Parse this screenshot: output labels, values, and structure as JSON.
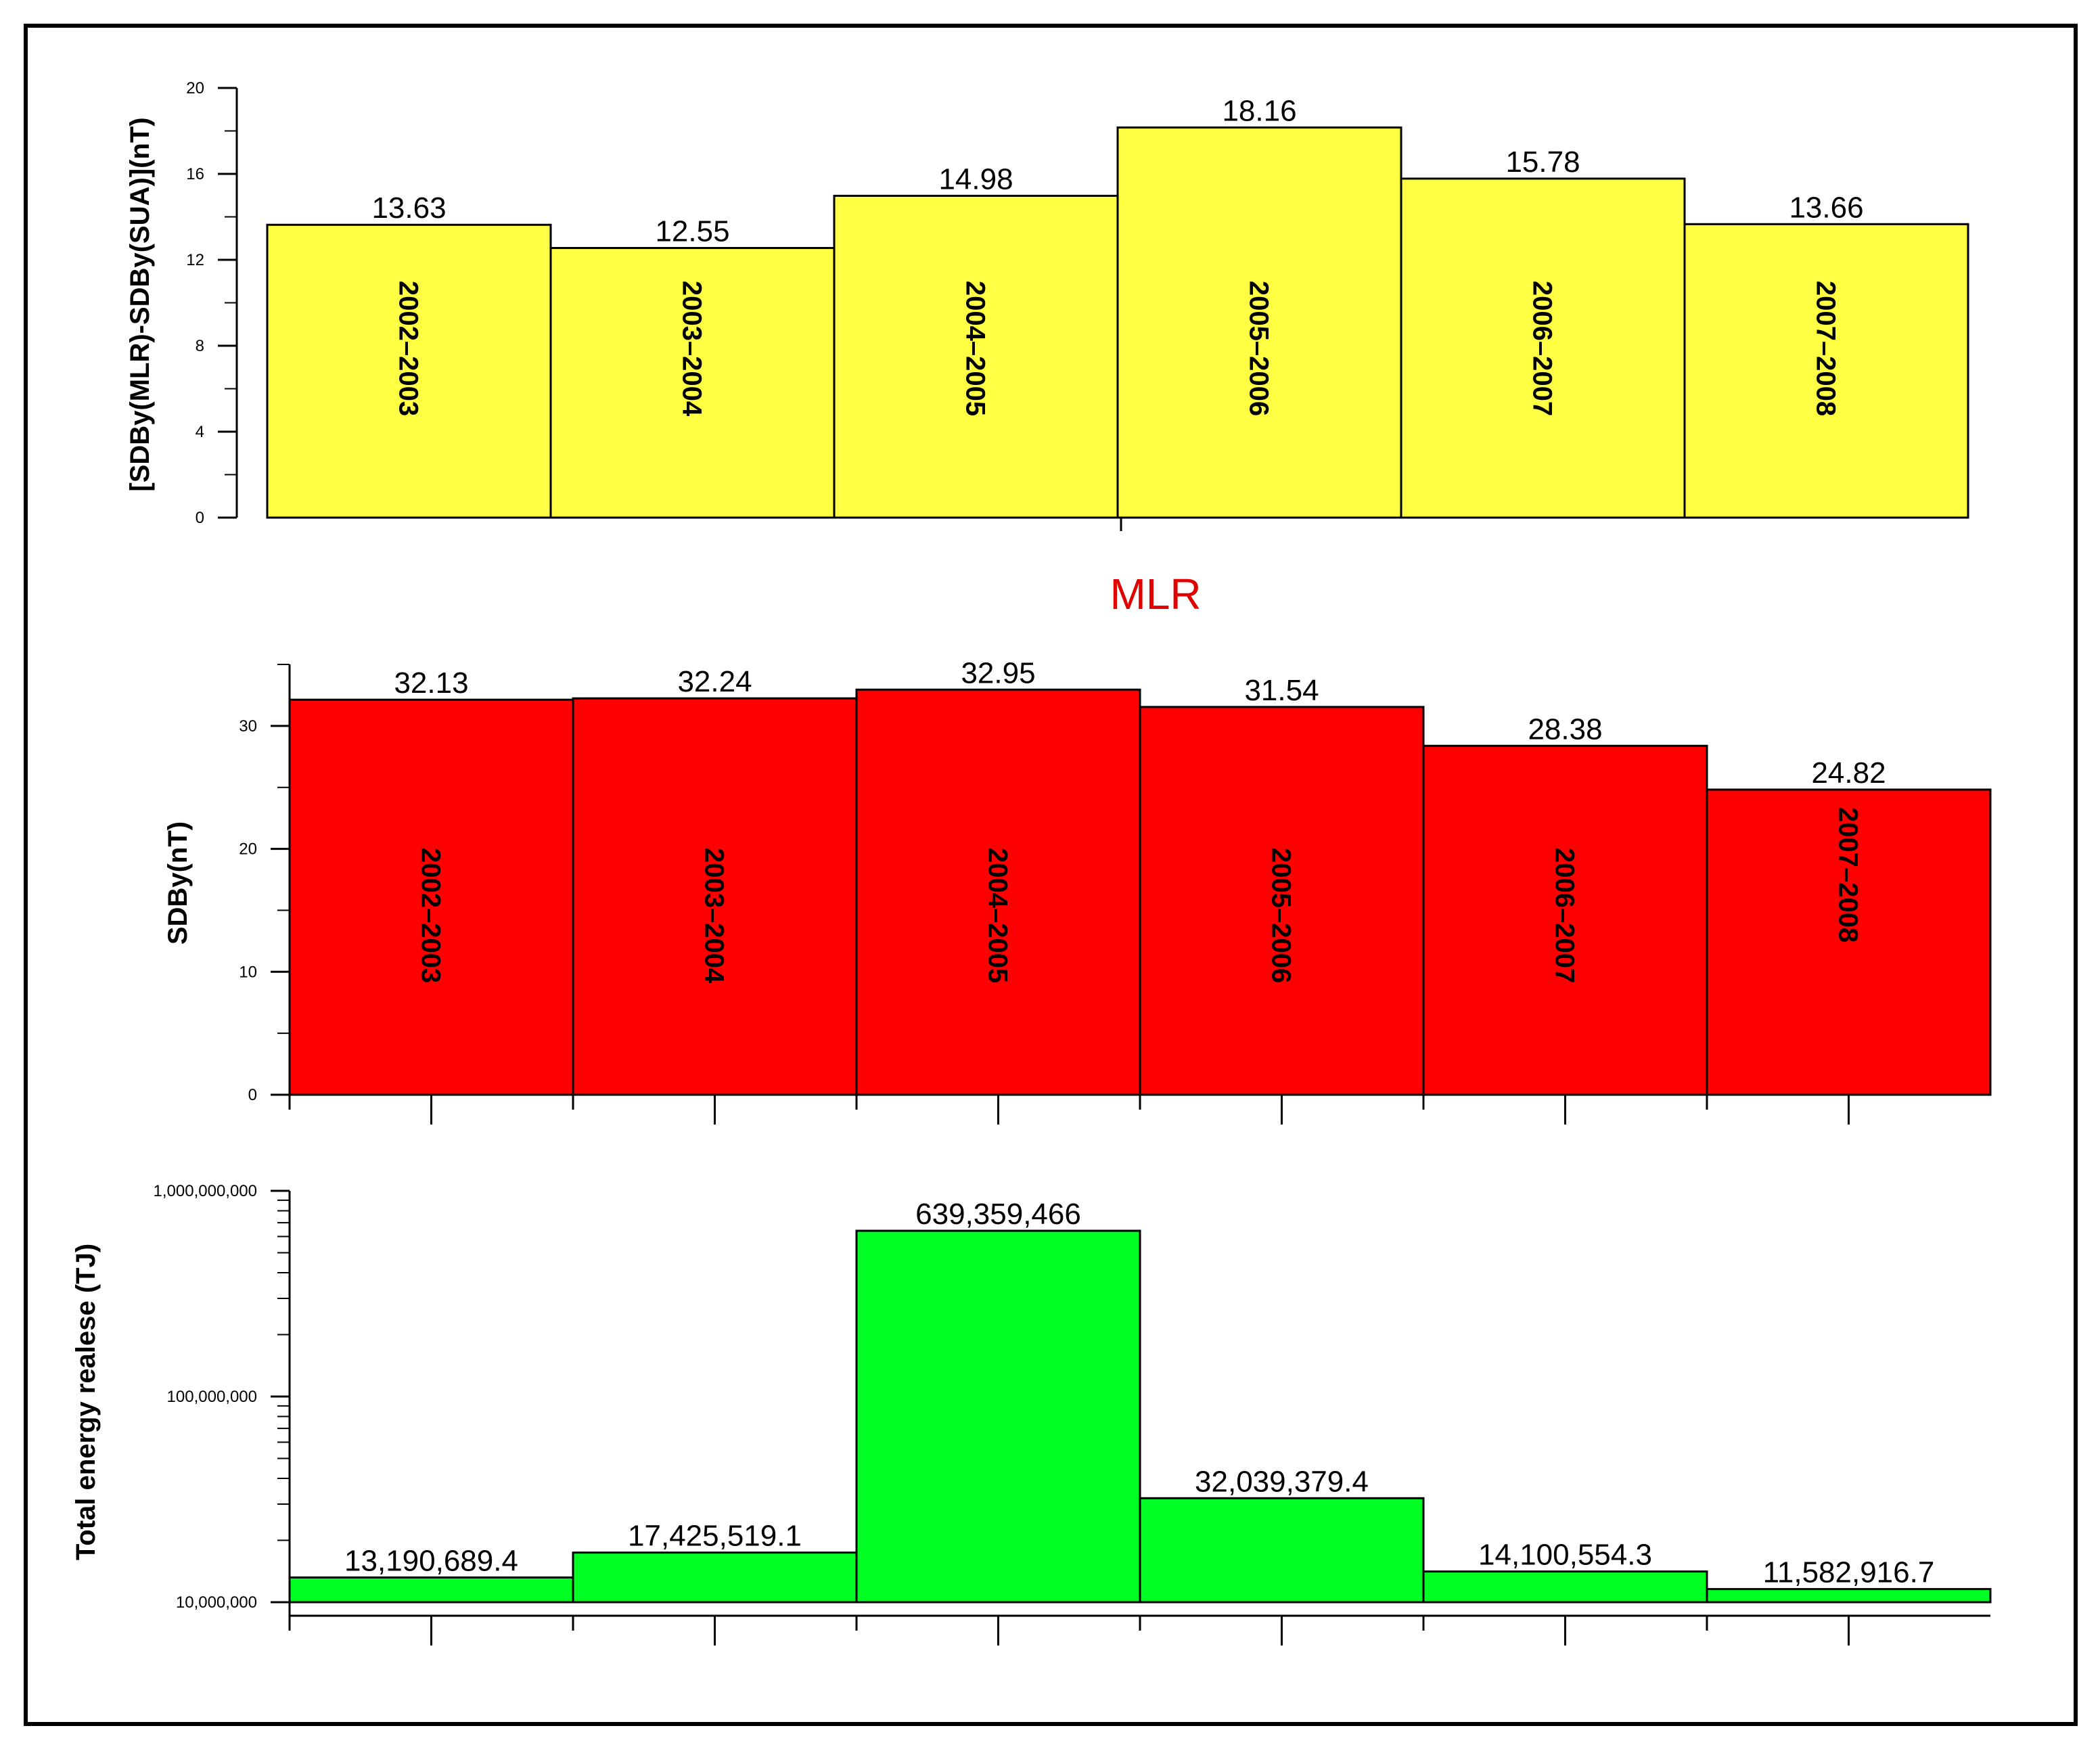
{
  "colors": {
    "yellow_bar": "#ffff44",
    "red_bar": "#ff0000",
    "green_bar": "#00ff22",
    "title_red": "#e00000",
    "frame": "#000000"
  },
  "chart_data": [
    {
      "type": "bar",
      "categories": [
        "2002–2003",
        "2003–2004",
        "2004–2005",
        "2005–2006",
        "2006–2007",
        "2007–2008"
      ],
      "values": [
        13.63,
        12.55,
        14.98,
        18.16,
        15.78,
        13.66
      ],
      "value_labels": [
        "13.63",
        "12.55",
        "14.98",
        "18.16",
        "15.78",
        "13.66"
      ],
      "ylabel": "[SDBy(MLR)-SDBy(SUA)](nT)",
      "ylim": [
        0,
        20
      ],
      "yticks": [
        0,
        4,
        8,
        12,
        16,
        20
      ],
      "ytick_labels": [
        "0",
        "4",
        "8",
        "12",
        "16",
        "20"
      ],
      "yscale": "linear",
      "grid": false
    },
    {
      "type": "bar",
      "title": "MLR",
      "categories": [
        "2002–2003",
        "2003–2004",
        "2004–2005",
        "2005–2006",
        "2006–2007",
        "2007–2008"
      ],
      "values": [
        32.13,
        32.24,
        32.95,
        31.54,
        28.38,
        24.82
      ],
      "value_labels": [
        "32.13",
        "32.24",
        "32.95",
        "31.54",
        "28.38",
        "24.82"
      ],
      "ylabel": "SDBy(nT)",
      "ylim": [
        0,
        35
      ],
      "yticks": [
        0,
        10,
        20,
        30
      ],
      "ytick_labels": [
        "0",
        "10",
        "20",
        "30"
      ],
      "yscale": "linear",
      "grid": false
    },
    {
      "type": "bar",
      "categories": [
        "2002–2003",
        "2003–2004",
        "2004–2005",
        "2005–2006",
        "2006–2007",
        "2007–2008"
      ],
      "values": [
        13190689.4,
        17425519.1,
        639359466,
        32039379.4,
        14100554.3,
        11582916.7
      ],
      "value_labels": [
        "13,190,689.4",
        "17,425,519.1",
        "639,359,466",
        "32,039,379.4",
        "14,100,554.3",
        "11,582,916.7"
      ],
      "ylabel": "Total energy realese (TJ)",
      "ylim": [
        10000000,
        1000000000
      ],
      "yticks": [
        10000000,
        100000000,
        1000000000
      ],
      "ytick_labels": [
        "10,000,000",
        "100,000,000",
        "1,000,000,000"
      ],
      "yscale": "log",
      "grid": false
    }
  ]
}
